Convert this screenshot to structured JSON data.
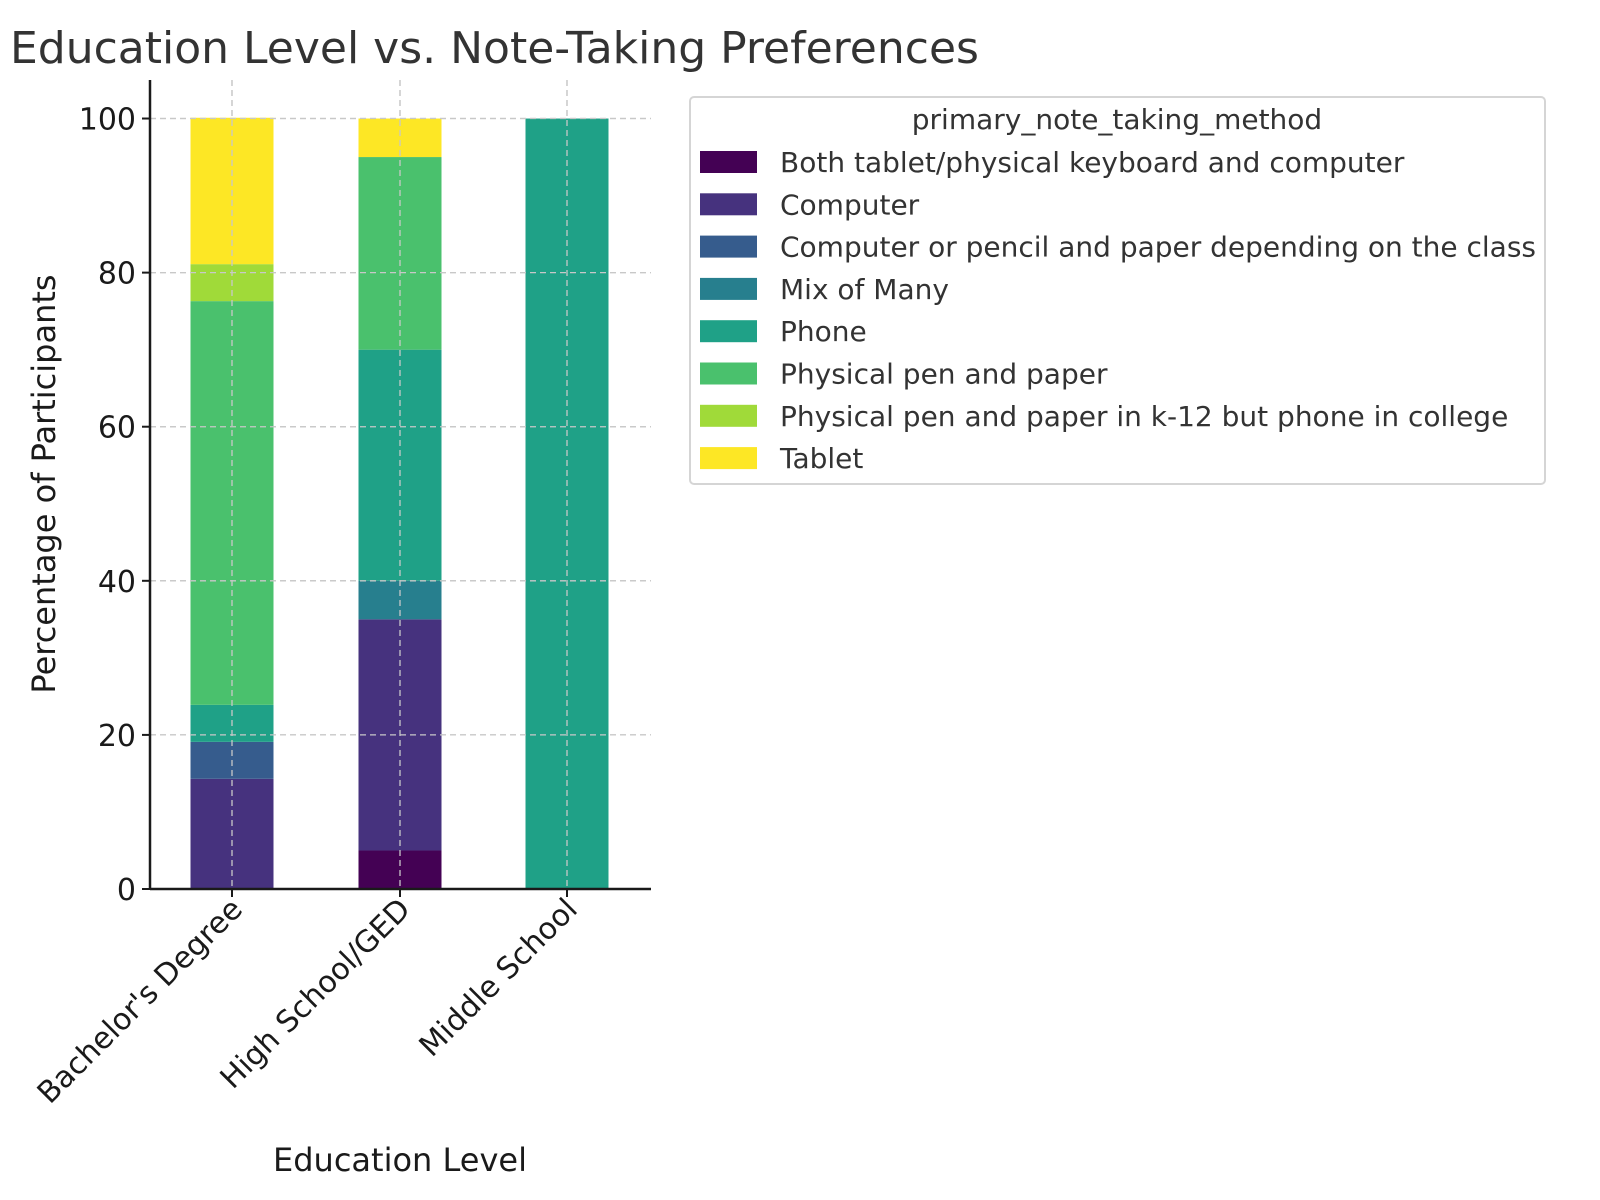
{
  "chart_data": {
    "type": "bar",
    "stacked": true,
    "title": "Education Level vs. Note-Taking Preferences",
    "xlabel": "Education Level",
    "ylabel": "Percentage of Participants",
    "ylim": [
      0,
      105
    ],
    "yticks": [
      "0",
      "20",
      "40",
      "60",
      "80",
      "100"
    ],
    "grid": true,
    "legend_title": "primary_note_taking_method",
    "legend_position": "outside right, top",
    "categories": [
      "Bachelor's Degree",
      "High School/GED",
      "Middle School"
    ],
    "series": [
      {
        "name": "Both tablet/physical keyboard and computer",
        "color": "#440154",
        "values": [
          0,
          5,
          0
        ]
      },
      {
        "name": "Computer",
        "color": "#46327e",
        "values": [
          14.3,
          30,
          0
        ]
      },
      {
        "name": "Computer or pencil and paper depending on the class",
        "color": "#365c8d",
        "values": [
          4.8,
          0,
          0
        ]
      },
      {
        "name": "Mix of Many",
        "color": "#277f8e",
        "values": [
          0,
          5,
          0
        ]
      },
      {
        "name": "Phone",
        "color": "#1fa187",
        "values": [
          4.8,
          30,
          100
        ]
      },
      {
        "name": "Physical pen and paper",
        "color": "#4ac16d",
        "values": [
          52.4,
          25,
          0
        ]
      },
      {
        "name": "Physical pen and paper in k-12 but phone in college",
        "color": "#a0da39",
        "values": [
          4.8,
          0,
          0
        ]
      },
      {
        "name": "Tablet",
        "color": "#fde725",
        "values": [
          19.0,
          5,
          0
        ]
      }
    ]
  }
}
